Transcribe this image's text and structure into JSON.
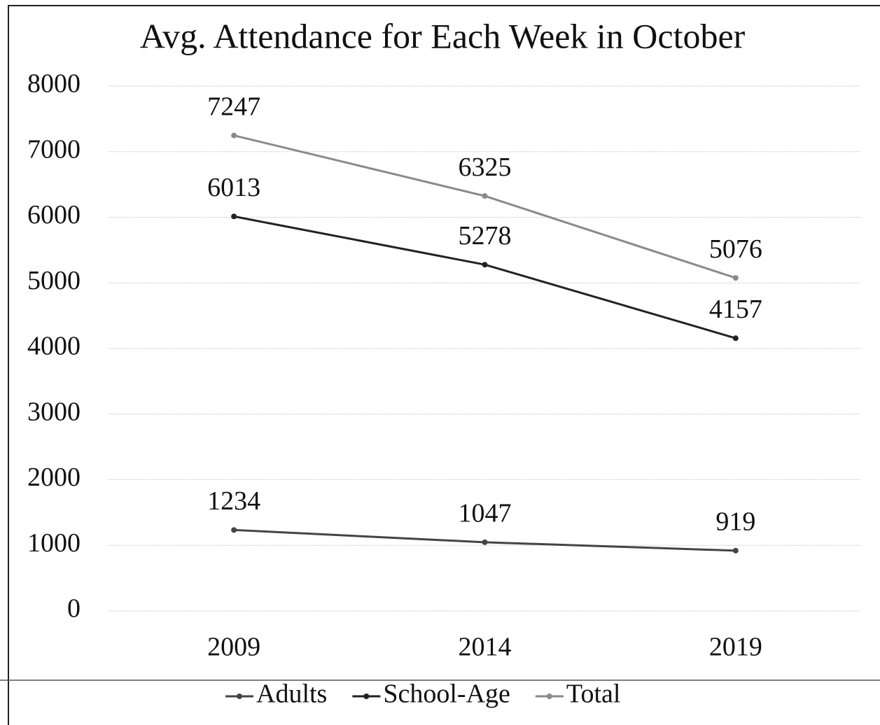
{
  "chart_data": {
    "type": "line",
    "title": "Avg. Attendance for Each Week in October",
    "categories": [
      "2009",
      "2014",
      "2019"
    ],
    "series": [
      {
        "name": "Adults",
        "color": "#444444",
        "values": [
          1234,
          1047,
          919
        ]
      },
      {
        "name": "School-Age",
        "color": "#222222",
        "values": [
          6013,
          5278,
          4157
        ]
      },
      {
        "name": "Total",
        "color": "#8a8a8a",
        "values": [
          7247,
          6325,
          5076
        ]
      }
    ],
    "ylim": [
      0,
      8000
    ],
    "yticks": [
      0,
      1000,
      2000,
      3000,
      4000,
      5000,
      6000,
      7000,
      8000
    ],
    "grid": true,
    "legend": "bottom"
  }
}
